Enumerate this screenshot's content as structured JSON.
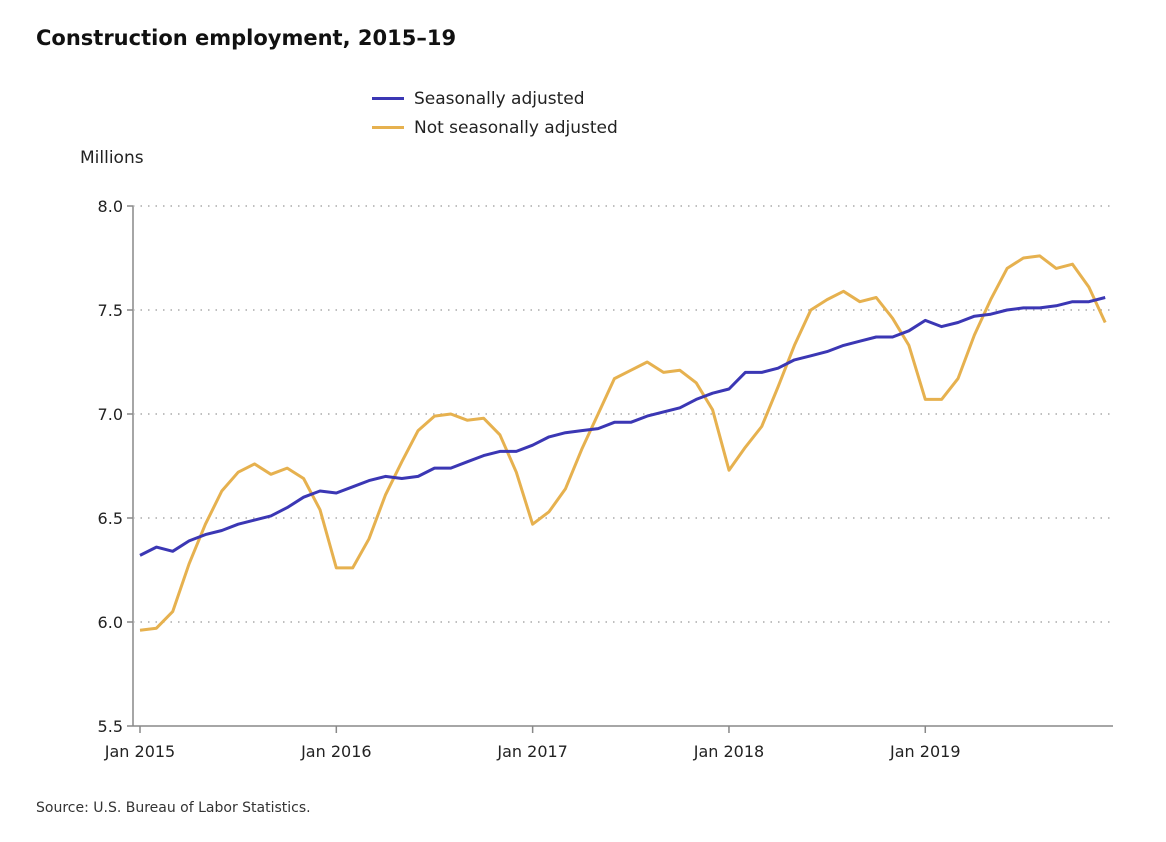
{
  "chart_data": {
    "type": "line",
    "title": "Construction employment, 2015–19",
    "ylabel": "Millions",
    "xlabel": "",
    "ylim": [
      5.5,
      8.0
    ],
    "yticks": [
      "5.5",
      "6.0",
      "6.5",
      "7.0",
      "7.5",
      "8.0"
    ],
    "xticks": [
      "Jan 2015",
      "Jan 2016",
      "Jan 2017",
      "Jan 2018",
      "Jan 2019"
    ],
    "grid": "horizontal dotted",
    "legend_position": "top-center",
    "x_start": "Jan 2015",
    "x_frequency": "monthly",
    "series": [
      {
        "name": "Seasonally adjusted",
        "color": "#3b37b4",
        "values": [
          6.32,
          6.36,
          6.34,
          6.39,
          6.42,
          6.44,
          6.47,
          6.49,
          6.51,
          6.55,
          6.6,
          6.63,
          6.62,
          6.65,
          6.68,
          6.7,
          6.69,
          6.7,
          6.74,
          6.74,
          6.77,
          6.8,
          6.82,
          6.82,
          6.85,
          6.89,
          6.91,
          6.92,
          6.93,
          6.96,
          6.96,
          6.99,
          7.01,
          7.03,
          7.07,
          7.1,
          7.12,
          7.2,
          7.2,
          7.22,
          7.26,
          7.28,
          7.3,
          7.33,
          7.35,
          7.37,
          7.37,
          7.4,
          7.45,
          7.42,
          7.44,
          7.47,
          7.48,
          7.5,
          7.51,
          7.51,
          7.52,
          7.54,
          7.54,
          7.56
        ]
      },
      {
        "name": "Not seasonally adjusted",
        "color": "#e6b14f",
        "values": [
          5.96,
          5.97,
          6.05,
          6.28,
          6.47,
          6.63,
          6.72,
          6.76,
          6.71,
          6.74,
          6.69,
          6.54,
          6.26,
          6.26,
          6.4,
          6.61,
          6.77,
          6.92,
          6.99,
          7.0,
          6.97,
          6.98,
          6.9,
          6.72,
          6.47,
          6.53,
          6.64,
          6.83,
          7.0,
          7.17,
          7.21,
          7.25,
          7.2,
          7.21,
          7.15,
          7.02,
          6.73,
          6.84,
          6.94,
          7.13,
          7.33,
          7.5,
          7.55,
          7.59,
          7.54,
          7.56,
          7.46,
          7.33,
          7.07,
          7.07,
          7.17,
          7.38,
          7.55,
          7.7,
          7.75,
          7.76,
          7.7,
          7.72,
          7.61,
          7.44
        ]
      }
    ],
    "source": "Source: U.S. Bureau of Labor Statistics."
  }
}
